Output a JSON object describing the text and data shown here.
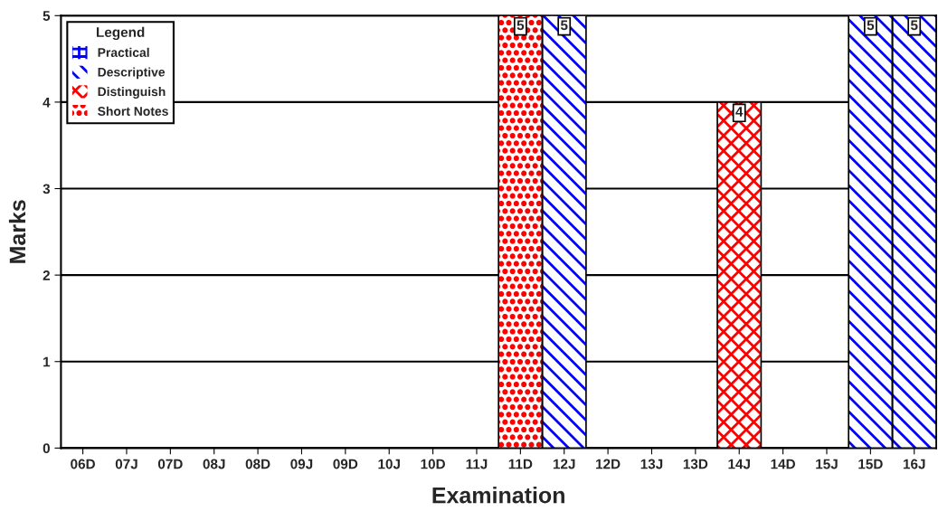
{
  "chart_data": {
    "type": "bar",
    "stacked": true,
    "xlabel": "Examination",
    "ylabel": "Marks",
    "legend_title": "Legend",
    "categories": [
      "06D",
      "07J",
      "07D",
      "08J",
      "08D",
      "09J",
      "09D",
      "10J",
      "10D",
      "11J",
      "11D",
      "12J",
      "12D",
      "13J",
      "13D",
      "14J",
      "14D",
      "15J",
      "15D",
      "16J"
    ],
    "series": [
      {
        "name": "Practical",
        "color": "#0000ff",
        "values": [
          0,
          0,
          0,
          0,
          0,
          0,
          0,
          0,
          0,
          0,
          0,
          0,
          0,
          0,
          0,
          0,
          0,
          0,
          0,
          0
        ],
        "value_labels": [
          null,
          null,
          null,
          null,
          null,
          null,
          null,
          null,
          null,
          null,
          null,
          null,
          null,
          null,
          null,
          null,
          null,
          null,
          null,
          null
        ]
      },
      {
        "name": "Descriptive",
        "color": "#0000ff",
        "values": [
          0,
          0,
          0,
          0,
          0,
          0,
          0,
          0,
          0,
          0,
          0,
          5,
          0,
          0,
          0,
          0,
          0,
          0,
          5,
          5
        ],
        "value_labels": [
          null,
          null,
          null,
          null,
          null,
          null,
          null,
          null,
          null,
          null,
          null,
          "5",
          null,
          null,
          null,
          null,
          null,
          null,
          "5",
          "5"
        ]
      },
      {
        "name": "Distinguish",
        "color": "#ff0000",
        "values": [
          0,
          0,
          0,
          0,
          0,
          0,
          0,
          0,
          0,
          0,
          0,
          0,
          0,
          0,
          0,
          4,
          0,
          0,
          0,
          0
        ],
        "value_labels": [
          null,
          null,
          null,
          null,
          null,
          null,
          null,
          null,
          null,
          null,
          null,
          null,
          null,
          null,
          null,
          "4",
          null,
          null,
          null,
          null
        ]
      },
      {
        "name": "Short Notes",
        "color": "#ff0000",
        "values": [
          0,
          0,
          0,
          0,
          0,
          0,
          0,
          0,
          0,
          0,
          5,
          0,
          0,
          0,
          0,
          0,
          0,
          0,
          0,
          0
        ],
        "value_labels": [
          null,
          null,
          null,
          null,
          null,
          null,
          null,
          null,
          null,
          null,
          "5",
          null,
          null,
          null,
          null,
          null,
          null,
          null,
          null,
          null
        ]
      }
    ],
    "ylim": [
      0,
      5
    ],
    "yticks": [
      0,
      1,
      2,
      3,
      4,
      5
    ],
    "grid": "y",
    "legend": "top left"
  }
}
